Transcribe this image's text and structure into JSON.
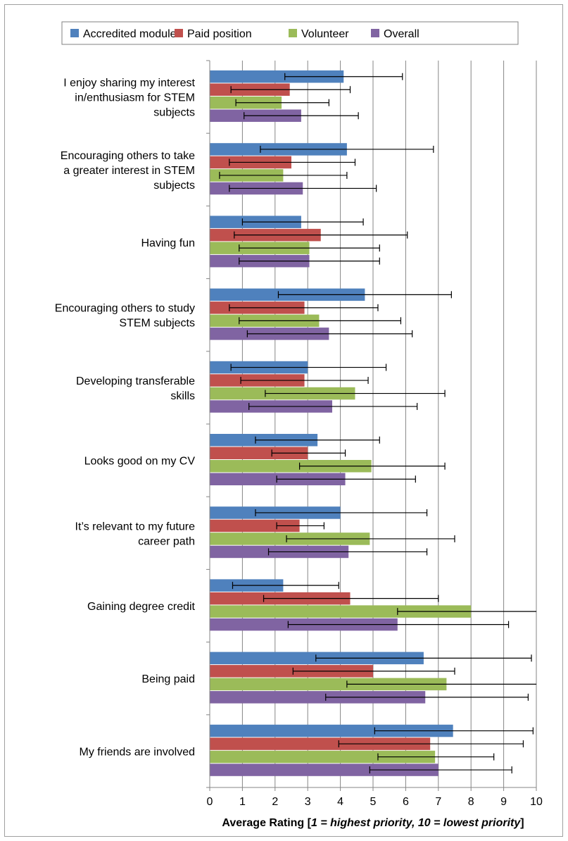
{
  "chart_data": {
    "type": "bar",
    "orientation": "horizontal",
    "categories": [
      [
        "I enjoy sharing my interest",
        "in/enthusiasm for STEM",
        "subjects"
      ],
      [
        "Encouraging others to take",
        "a greater interest in STEM",
        "subjects"
      ],
      [
        "Having fun"
      ],
      [
        "Encouraging others to study",
        "STEM subjects"
      ],
      [
        "Developing transferable",
        "skills"
      ],
      [
        "Looks good on my CV"
      ],
      [
        "It’s relevant to my future",
        "career path"
      ],
      [
        "Gaining degree credit"
      ],
      [
        "Being paid"
      ],
      [
        "My friends are involved"
      ]
    ],
    "series": [
      {
        "name": "Accredited module",
        "color": "#4f81bd",
        "values": [
          4.1,
          4.2,
          2.8,
          4.75,
          3.0,
          3.3,
          4.0,
          2.25,
          6.55,
          7.45
        ],
        "error_low": [
          2.3,
          1.55,
          1.0,
          2.1,
          0.65,
          1.4,
          1.4,
          0.7,
          3.25,
          5.05
        ],
        "error_high": [
          5.9,
          6.85,
          4.7,
          7.4,
          5.4,
          5.2,
          6.65,
          3.95,
          9.85,
          9.9
        ]
      },
      {
        "name": "Paid position",
        "color": "#c0504d",
        "values": [
          2.45,
          2.5,
          3.4,
          2.9,
          2.9,
          3.0,
          2.75,
          4.3,
          5.0,
          6.75
        ],
        "error_low": [
          0.65,
          0.6,
          0.75,
          0.6,
          0.95,
          1.9,
          2.05,
          1.65,
          2.55,
          3.95
        ],
        "error_high": [
          4.3,
          4.45,
          6.05,
          5.15,
          4.85,
          4.15,
          3.5,
          7.0,
          7.5,
          9.6
        ]
      },
      {
        "name": "Volunteer",
        "color": "#9bbb59",
        "values": [
          2.2,
          2.25,
          3.05,
          3.35,
          4.45,
          4.95,
          4.9,
          8.0,
          7.25,
          6.9
        ],
        "error_low": [
          0.8,
          0.3,
          0.9,
          0.9,
          1.7,
          2.75,
          2.35,
          5.75,
          4.2,
          5.15
        ],
        "error_high": [
          3.65,
          4.2,
          5.2,
          5.85,
          7.2,
          7.2,
          7.5,
          10.0,
          10.0,
          8.7
        ]
      },
      {
        "name": "Overall",
        "color": "#8064a2",
        "values": [
          2.8,
          2.85,
          3.05,
          3.65,
          3.75,
          4.15,
          4.25,
          5.75,
          6.6,
          7.0
        ],
        "error_low": [
          1.05,
          0.6,
          0.9,
          1.15,
          1.2,
          2.05,
          1.8,
          2.4,
          3.55,
          4.9
        ],
        "error_high": [
          4.55,
          5.1,
          5.2,
          6.2,
          6.35,
          6.3,
          6.65,
          9.15,
          9.75,
          9.25
        ]
      }
    ],
    "x_ticks": [
      "0",
      "1",
      "2",
      "3",
      "4",
      "5",
      "6",
      "7",
      "8",
      "9",
      "10"
    ],
    "xlim": [
      0,
      10
    ],
    "xlabel": {
      "prefix": "Average Rating [",
      "italic": "1 = highest priority,  10 = lowest priority",
      "suffix": "]"
    },
    "ylabel": "",
    "grid": "vertical",
    "legend": "top"
  }
}
